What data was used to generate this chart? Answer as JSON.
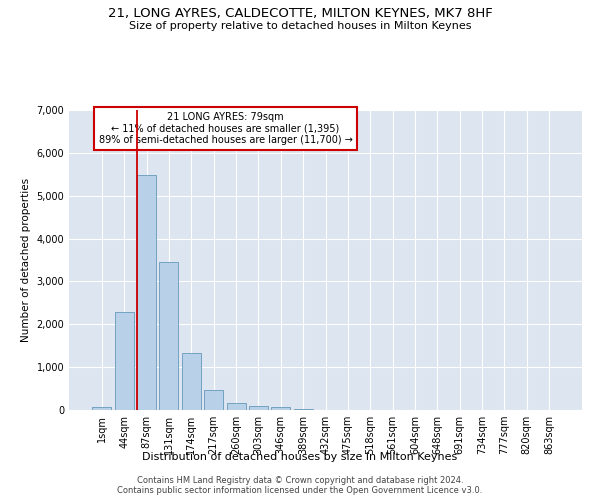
{
  "title": "21, LONG AYRES, CALDECOTTE, MILTON KEYNES, MK7 8HF",
  "subtitle": "Size of property relative to detached houses in Milton Keynes",
  "xlabel": "Distribution of detached houses by size in Milton Keynes",
  "ylabel": "Number of detached properties",
  "footer_line1": "Contains HM Land Registry data © Crown copyright and database right 2024.",
  "footer_line2": "Contains public sector information licensed under the Open Government Licence v3.0.",
  "bar_labels": [
    "1sqm",
    "44sqm",
    "87sqm",
    "131sqm",
    "174sqm",
    "217sqm",
    "260sqm",
    "303sqm",
    "346sqm",
    "389sqm",
    "432sqm",
    "475sqm",
    "518sqm",
    "561sqm",
    "604sqm",
    "648sqm",
    "691sqm",
    "734sqm",
    "777sqm",
    "820sqm",
    "863sqm"
  ],
  "bar_values": [
    80,
    2280,
    5480,
    3450,
    1320,
    460,
    160,
    100,
    60,
    30,
    10,
    0,
    0,
    0,
    0,
    0,
    0,
    0,
    0,
    0,
    0
  ],
  "bar_color": "#b8d0e8",
  "bar_edge_color": "#6699bb",
  "bg_color": "#dde5f0",
  "annotation_text": "21 LONG AYRES: 79sqm\n← 11% of detached houses are smaller (1,395)\n89% of semi-detached houses are larger (11,700) →",
  "annotation_box_color": "#ffffff",
  "annotation_box_edge": "#cc0000",
  "vline_color": "#cc0000",
  "vline_x": 1.57,
  "ylim": [
    0,
    7000
  ],
  "yticks": [
    0,
    1000,
    2000,
    3000,
    4000,
    5000,
    6000,
    7000
  ],
  "title_fontsize": 9.5,
  "subtitle_fontsize": 8,
  "ylabel_fontsize": 7.5,
  "xlabel_fontsize": 8,
  "tick_fontsize": 7,
  "annotation_fontsize": 7,
  "footer_fontsize": 6
}
